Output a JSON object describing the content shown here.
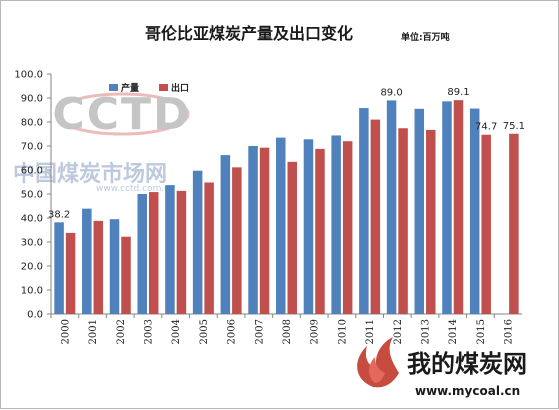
{
  "chart_data": {
    "type": "bar",
    "title": "哥伦比亚煤炭产量及出口变化",
    "unit_label": "单位:百万吨",
    "categories": [
      "2000",
      "2001",
      "2002",
      "2003",
      "2004",
      "2005",
      "2006",
      "2007",
      "2008",
      "2009",
      "2010",
      "2011",
      "2012",
      "2013",
      "2014",
      "2015",
      "2016"
    ],
    "series": [
      {
        "name": "产量",
        "color": "#4f81bd",
        "values": [
          38.2,
          43.9,
          39.5,
          50.0,
          53.7,
          59.7,
          66.2,
          70.0,
          73.5,
          72.8,
          74.4,
          85.8,
          89.0,
          85.5,
          88.6,
          85.6,
          null
        ]
      },
      {
        "name": "出口",
        "color": "#c0504d",
        "values": [
          33.8,
          38.8,
          32.2,
          50.8,
          51.3,
          54.8,
          61.1,
          69.3,
          63.4,
          68.8,
          72.0,
          81.0,
          77.4,
          76.7,
          89.1,
          74.7,
          75.1
        ]
      }
    ],
    "data_labels": [
      {
        "series": 0,
        "index": 0,
        "text": "38.2"
      },
      {
        "series": 0,
        "index": 12,
        "text": "89.0"
      },
      {
        "series": 1,
        "index": 14,
        "text": "89.1"
      },
      {
        "series": 1,
        "index": 15,
        "text": "74.7"
      },
      {
        "series": 1,
        "index": 16,
        "text": "75.1"
      }
    ],
    "ylim": [
      0,
      100
    ],
    "yticks": [
      "0.0",
      "10.0",
      "20.0",
      "30.0",
      "40.0",
      "50.0",
      "60.0",
      "70.0",
      "80.0",
      "90.0",
      "100.0"
    ],
    "grid": false,
    "legend_position": "top-left"
  },
  "watermarks": {
    "cctd_logo": "CCTD",
    "cctd_cn": "中国煤炭市场网",
    "cctd_url": "www.cctd.com.cn",
    "mycoal_cn": "我的煤炭网",
    "mycoal_url": "www.mycoal.cn"
  }
}
